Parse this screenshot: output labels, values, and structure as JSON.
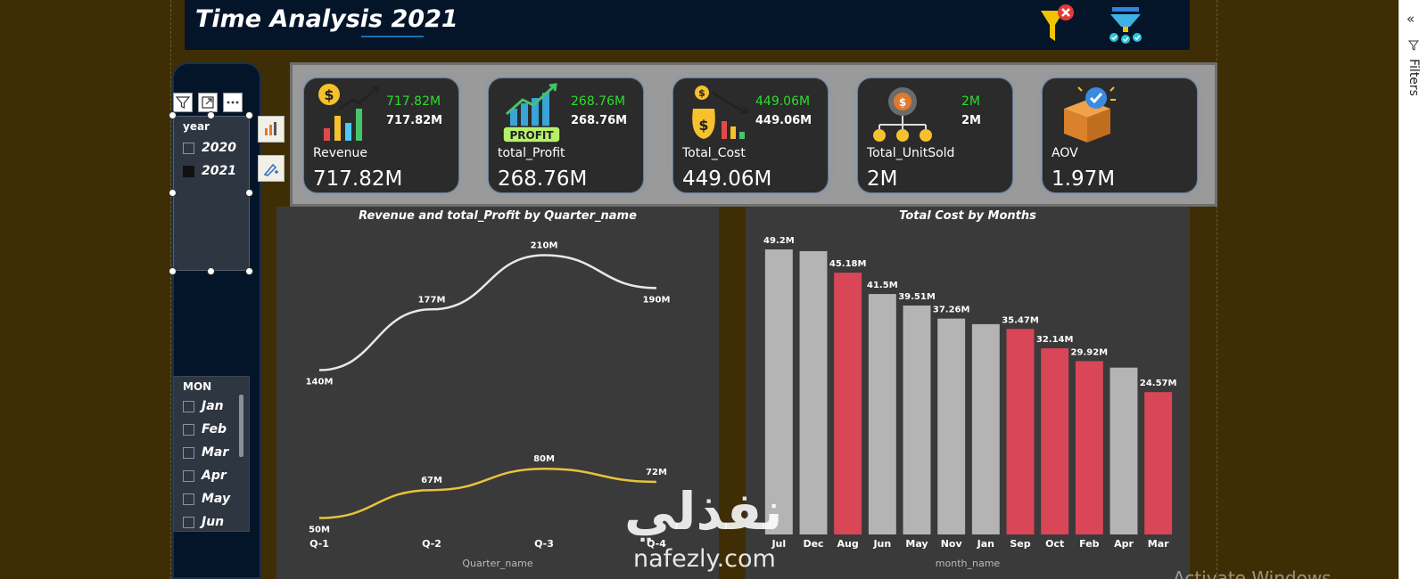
{
  "header": {
    "title": "Time Analysis 2021"
  },
  "toolbar": {
    "clear_filters_icon": "clear-filter-icon",
    "funnel_icon": "funnel-check-icon"
  },
  "year_slicer": {
    "heading": "year",
    "items": [
      {
        "label": "2020",
        "checked": false
      },
      {
        "label": "2021",
        "checked": true
      }
    ]
  },
  "month_slicer": {
    "heading": "MON",
    "items": [
      {
        "label": "Jan"
      },
      {
        "label": "Feb"
      },
      {
        "label": "Mar"
      },
      {
        "label": "Apr"
      },
      {
        "label": "May"
      },
      {
        "label": "Jun"
      }
    ]
  },
  "kpis": [
    {
      "label": "Revenue",
      "big": "717.82M",
      "green": "717.82M",
      "white": "717.82M",
      "icon": "revenue-chart-icon"
    },
    {
      "label": "total_Profit",
      "big": "268.76M",
      "green": "268.76M",
      "white": "268.76M",
      "icon": "profit-chart-icon"
    },
    {
      "label": "Total_Cost",
      "big": "449.06M",
      "green": "449.06M",
      "white": "449.06M",
      "icon": "money-bag-icon"
    },
    {
      "label": "Total_UnitSold",
      "big": "2M",
      "green": "2M",
      "white": "2M",
      "icon": "units-gear-icon"
    },
    {
      "label": "AOV",
      "big": "1.97M",
      "icon": "box-check-icon"
    }
  ],
  "chart_data": [
    {
      "type": "line",
      "title": "Revenue and total_Profit by Quarter_name",
      "xlabel": "Quarter_name",
      "categories": [
        "Q-1",
        "Q-2",
        "Q-3",
        "Q-4"
      ],
      "series": [
        {
          "color": "#e8e8e8",
          "values": [
            140,
            177,
            210,
            190
          ],
          "labels": [
            "140M",
            "177M",
            "210M",
            "190M"
          ]
        },
        {
          "color": "#e8c33a",
          "values": [
            50,
            67,
            80,
            72
          ],
          "labels": [
            "50M",
            "67M",
            "80M",
            "72M"
          ]
        }
      ]
    },
    {
      "type": "bar",
      "title": "Total Cost by Months",
      "xlabel": "month_name",
      "categories": [
        "Jul",
        "Dec",
        "Aug",
        "Jun",
        "May",
        "Nov",
        "Jan",
        "Sep",
        "Oct",
        "Feb",
        "Apr",
        "Mar"
      ],
      "values": [
        49.2,
        48.9,
        45.18,
        41.5,
        39.51,
        37.26,
        36.3,
        35.47,
        32.14,
        29.92,
        28.8,
        24.57
      ],
      "labels": [
        "49.2M",
        "",
        "45.18M",
        "41.5M",
        "39.51M",
        "37.26M",
        "",
        "35.47M",
        "32.14M",
        "29.92M",
        "",
        "24.57M"
      ],
      "colors": [
        "#b4b4b4",
        "#b4b4b4",
        "#d94657",
        "#b4b4b4",
        "#b4b4b4",
        "#b4b4b4",
        "#b4b4b4",
        "#d94657",
        "#d94657",
        "#d94657",
        "#b4b4b4",
        "#d94657"
      ]
    }
  ],
  "filters_pane": {
    "label": "Filters",
    "collapse_icon": "double-chevron-left-icon"
  },
  "watermark": {
    "arabic": "نفذلي",
    "latin": "nafezly.com"
  },
  "os_notice": "Activate Windows"
}
